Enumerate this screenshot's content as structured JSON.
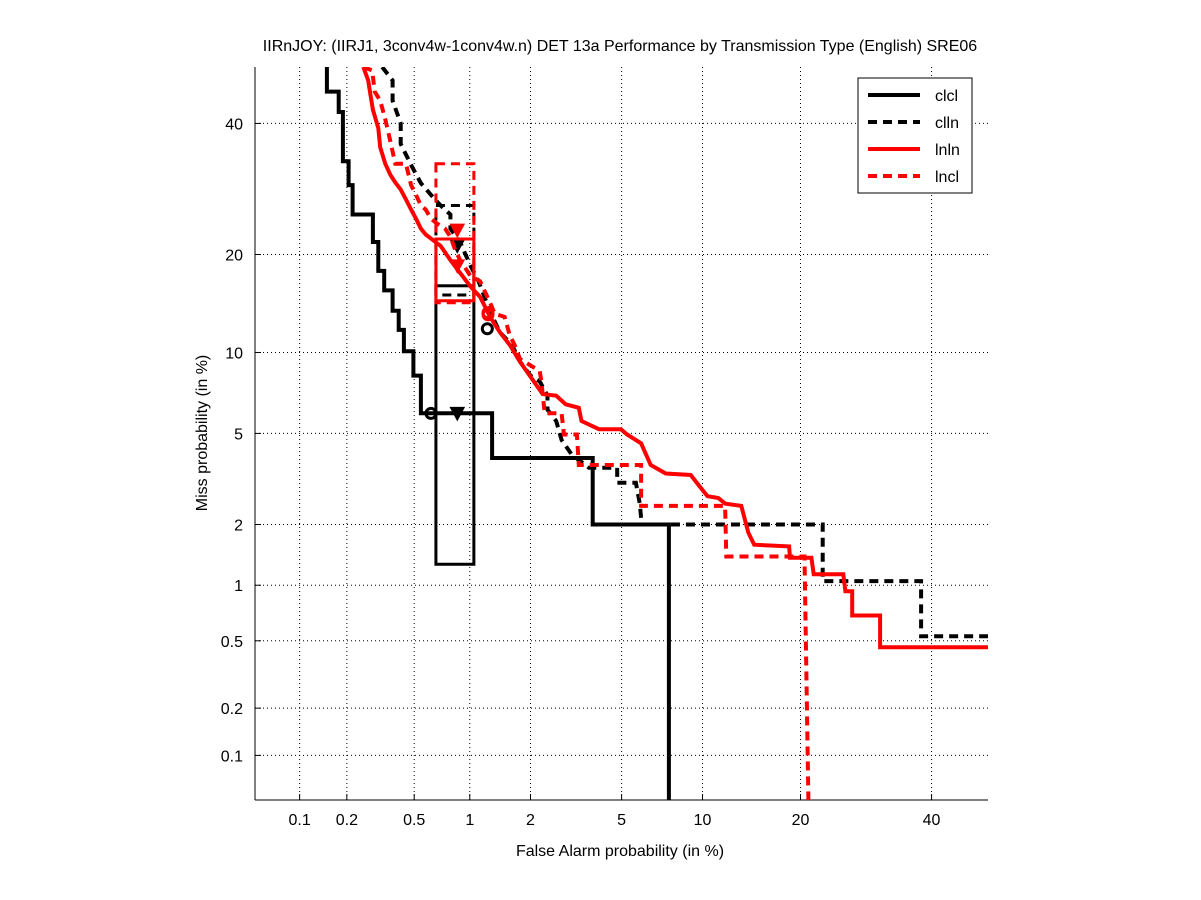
{
  "chart_data": {
    "type": "line",
    "scale": "probit",
    "title": "IIRnJOY: (IIRJ1, 3conv4w-1conv4w.n) DET 13a Performance by Transmission Type (English) SRE06",
    "xlabel": "False Alarm probability (in %)",
    "ylabel": "Miss probability (in %)",
    "xlim": [
      0.05,
      50
    ],
    "ylim": [
      0.05,
      50
    ],
    "grid": true,
    "legend_position": "top-right",
    "xticks": [
      0.1,
      0.2,
      0.5,
      1,
      2,
      5,
      10,
      20,
      40
    ],
    "xtick_labels": [
      "0.1",
      "0.2",
      "0.5",
      "1",
      "2",
      "5",
      "10",
      "20",
      "40"
    ],
    "yticks": [
      0.1,
      0.2,
      0.5,
      1,
      2,
      5,
      10,
      20,
      40
    ],
    "ytick_labels": [
      "0.1",
      "0.2",
      "0.5",
      "1",
      "2",
      "5",
      "10",
      "20",
      "40"
    ],
    "series": [
      {
        "name": "clcl",
        "color": "#000000",
        "dashed": false,
        "points": [
          [
            0.15,
            50
          ],
          [
            0.15,
            45.6
          ],
          [
            0.178,
            45.6
          ],
          [
            0.178,
            42
          ],
          [
            0.189,
            42
          ],
          [
            0.189,
            33.6
          ],
          [
            0.205,
            33.6
          ],
          [
            0.205,
            29.8
          ],
          [
            0.217,
            29.8
          ],
          [
            0.217,
            25.4
          ],
          [
            0.288,
            25.4
          ],
          [
            0.288,
            21.6
          ],
          [
            0.31,
            21.6
          ],
          [
            0.31,
            18
          ],
          [
            0.336,
            18
          ],
          [
            0.336,
            15.8
          ],
          [
            0.376,
            15.8
          ],
          [
            0.376,
            13.7
          ],
          [
            0.408,
            13.7
          ],
          [
            0.408,
            11.9
          ],
          [
            0.437,
            11.9
          ],
          [
            0.437,
            10.1
          ],
          [
            0.495,
            10.1
          ],
          [
            0.495,
            8.3
          ],
          [
            0.545,
            8.3
          ],
          [
            0.545,
            6.0
          ],
          [
            1.3,
            6.0
          ],
          [
            1.3,
            3.96
          ],
          [
            3.8,
            3.96
          ],
          [
            3.8,
            2
          ],
          [
            7.6,
            2
          ],
          [
            7.6,
            0.05
          ]
        ],
        "box": {
          "x": [
            0.66,
            1.05
          ],
          "y": [
            1.28,
            16.3
          ]
        },
        "min_dcf": [
          0.62,
          6.0
        ],
        "act_dcf": [
          0.86,
          6.0
        ]
      },
      {
        "name": "clln",
        "color": "#000000",
        "dashed": true,
        "points": [
          [
            0.327,
            50
          ],
          [
            0.376,
            47.6
          ],
          [
            0.376,
            44
          ],
          [
            0.419,
            40
          ],
          [
            0.419,
            36.5
          ],
          [
            0.48,
            33
          ],
          [
            0.545,
            30.1
          ],
          [
            0.62,
            28.3
          ],
          [
            0.7,
            26.7
          ],
          [
            0.79,
            25.4
          ],
          [
            0.79,
            23.4
          ],
          [
            0.89,
            21.6
          ],
          [
            0.95,
            20
          ],
          [
            1.01,
            18.6
          ],
          [
            1.11,
            16.8
          ],
          [
            1.27,
            13.6
          ],
          [
            1.42,
            11.7
          ],
          [
            1.63,
            10.6
          ],
          [
            1.78,
            9.3
          ],
          [
            2.0,
            8.3
          ],
          [
            2.21,
            7.9
          ],
          [
            2.4,
            7.0
          ],
          [
            2.4,
            6.2
          ],
          [
            2.63,
            5.6
          ],
          [
            2.78,
            4.7
          ],
          [
            3.08,
            4.1
          ],
          [
            3.66,
            3.6
          ],
          [
            4.8,
            3.6
          ],
          [
            4.8,
            3.1
          ],
          [
            5.7,
            3.1
          ],
          [
            5.9,
            2.5
          ],
          [
            6.0,
            2.0
          ],
          [
            22.9,
            2.0
          ],
          [
            22.9,
            1.05
          ],
          [
            38.2,
            1.05
          ],
          [
            38.2,
            0.53
          ],
          [
            50,
            0.53
          ]
        ],
        "box": {
          "x": [
            0.66,
            1.05
          ],
          "y": [
            15.3,
            26.7
          ]
        },
        "min_dcf": [
          1.23,
          12.0
        ],
        "act_dcf": [
          0.86,
          21.1
        ]
      },
      {
        "name": "lnln",
        "color": "#ff0000",
        "dashed": false,
        "points": [
          [
            0.252,
            50
          ],
          [
            0.27,
            47.6
          ],
          [
            0.278,
            45.1
          ],
          [
            0.288,
            42.4
          ],
          [
            0.31,
            39.2
          ],
          [
            0.318,
            35.9
          ],
          [
            0.341,
            33.2
          ],
          [
            0.365,
            31.4
          ],
          [
            0.39,
            30.2
          ],
          [
            0.419,
            29.1
          ],
          [
            0.449,
            27.6
          ],
          [
            0.48,
            26.1
          ],
          [
            0.512,
            24.8
          ],
          [
            0.545,
            23.4
          ],
          [
            0.58,
            22.6
          ],
          [
            0.633,
            21.9
          ],
          [
            0.7,
            21.1
          ],
          [
            0.79,
            19.3
          ],
          [
            1.01,
            16.2
          ],
          [
            1.13,
            15.1
          ],
          [
            1.27,
            13.1
          ],
          [
            1.42,
            11.7
          ],
          [
            1.59,
            10.6
          ],
          [
            1.78,
            9.3
          ],
          [
            2.28,
            7.1
          ],
          [
            2.63,
            7.0
          ],
          [
            2.9,
            6.5
          ],
          [
            3.31,
            6.3
          ],
          [
            3.4,
            5.6
          ],
          [
            4.04,
            5.2
          ],
          [
            4.97,
            5.2
          ],
          [
            5.26,
            4.95
          ],
          [
            5.97,
            4.56
          ],
          [
            6.5,
            3.7
          ],
          [
            7.4,
            3.4
          ],
          [
            9.1,
            3.35
          ],
          [
            9.75,
            3.0
          ],
          [
            10.4,
            2.7
          ],
          [
            11.3,
            2.65
          ],
          [
            11.9,
            2.5
          ],
          [
            13.4,
            2.44
          ],
          [
            14.1,
            1.83
          ],
          [
            14.7,
            1.6
          ],
          [
            18.6,
            1.57
          ],
          [
            18.7,
            1.38
          ],
          [
            21.4,
            1.38
          ],
          [
            21.7,
            1.14
          ],
          [
            25.8,
            1.14
          ],
          [
            26.1,
            0.93
          ],
          [
            27.1,
            0.93
          ],
          [
            27.1,
            0.69
          ],
          [
            31.4,
            0.69
          ],
          [
            31.4,
            0.46
          ],
          [
            50,
            0.46
          ]
        ],
        "box": {
          "x": [
            0.66,
            1.05
          ],
          "y": [
            14.7,
            22.0
          ]
        },
        "min_dcf": [
          1.24,
          13.3
        ],
        "act_dcf": [
          0.86,
          18.6
        ]
      },
      {
        "name": "lncl",
        "color": "#ff0000",
        "dashed": true,
        "points": [
          [
            0.252,
            50
          ],
          [
            0.285,
            49.4
          ],
          [
            0.295,
            45.6
          ],
          [
            0.318,
            44
          ],
          [
            0.341,
            40.7
          ],
          [
            0.365,
            36.9
          ],
          [
            0.39,
            33.2
          ],
          [
            0.449,
            33.2
          ],
          [
            0.465,
            31.4
          ],
          [
            0.48,
            29.8
          ],
          [
            0.512,
            28.3
          ],
          [
            0.545,
            26.7
          ],
          [
            0.58,
            26.1
          ],
          [
            0.62,
            24.8
          ],
          [
            0.67,
            24.1
          ],
          [
            0.74,
            23.4
          ],
          [
            0.79,
            22.3
          ],
          [
            0.84,
            20.5
          ],
          [
            0.89,
            19.3
          ],
          [
            1.01,
            17.4
          ],
          [
            1.13,
            16.8
          ],
          [
            1.2,
            15.6
          ],
          [
            1.27,
            14.5
          ],
          [
            1.34,
            13.4
          ],
          [
            1.5,
            13.1
          ],
          [
            1.59,
            11.4
          ],
          [
            1.68,
            10.6
          ],
          [
            1.78,
            9.5
          ],
          [
            2.21,
            8.6
          ],
          [
            2.25,
            7.9
          ],
          [
            2.33,
            6.0
          ],
          [
            2.78,
            6.0
          ],
          [
            2.85,
            4.95
          ],
          [
            3.25,
            4.95
          ],
          [
            3.31,
            3.7
          ],
          [
            5.97,
            3.7
          ],
          [
            5.97,
            2.44
          ],
          [
            11.9,
            2.44
          ],
          [
            12.0,
            1.4
          ],
          [
            20.5,
            1.4
          ],
          [
            21.0,
            0.05
          ]
        ],
        "box": {
          "x": [
            0.66,
            1.05
          ],
          "y": [
            14.5,
            33.2
          ]
        },
        "min_dcf": [
          1.24,
          13.5
        ],
        "act_dcf": [
          0.86,
          23.2
        ]
      }
    ]
  }
}
